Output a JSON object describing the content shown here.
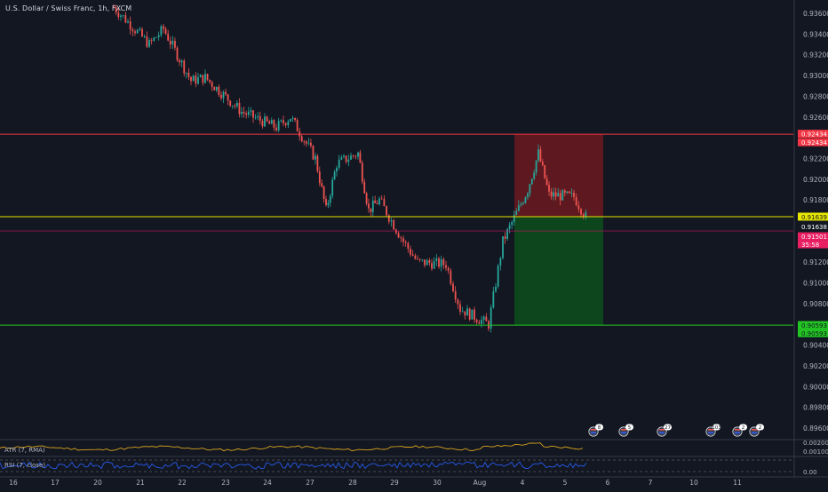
{
  "header": {
    "title": "U.S. Dollar / Swiss Franc, 1h, FXCM"
  },
  "price_axis": {
    "ticks": [
      "0.93600",
      "0.93400",
      "0.93200",
      "0.93000",
      "0.92800",
      "0.92600",
      "0.92200",
      "0.92000",
      "0.91800",
      "0.91200",
      "0.91000",
      "0.90800",
      "0.90400",
      "0.90200",
      "0.90000",
      "0.89800",
      "0.89600"
    ]
  },
  "price_tags": {
    "red_upper": "0.92434",
    "red_lower": "0.92434",
    "yellow": "0.91639",
    "current": "0.91638",
    "pink": "0.91501",
    "countdown": "35:58",
    "green_upper": "0.90593",
    "green_lower": "0.90593"
  },
  "time_axis": {
    "labels": [
      "16",
      "17",
      "20",
      "21",
      "22",
      "23",
      "24",
      "27",
      "28",
      "29",
      "30",
      "Aug",
      "4",
      "5",
      "6",
      "7",
      "10",
      "11"
    ]
  },
  "event_badges": [
    "8",
    "5",
    "27",
    "103",
    "2",
    "2"
  ],
  "indicators": {
    "atr": {
      "label": "ATR (7, RMA)",
      "ticks": [
        "0.00200",
        "0.00100"
      ]
    },
    "rsi": {
      "label": "RSI (7, close)",
      "ticks": [
        "0.00"
      ]
    }
  },
  "colors": {
    "background": "#131722",
    "bull": "#26a69a",
    "bear": "#ef5350",
    "red_line": "#f23645",
    "yellow_line": "#e6e600",
    "green_line": "#22c522",
    "stop_zone": "#6b1a1f",
    "target_zone": "#0d4a1d"
  },
  "chart_data": {
    "type": "candlestick",
    "symbol": "U.S. Dollar / Swiss Franc",
    "interval": "1h",
    "source": "FXCM",
    "close_path": [
      {
        "date": "Jul 20",
        "price": 0.9366
      },
      {
        "date": "Jul 21",
        "price": 0.933
      },
      {
        "date": "Jul 21",
        "price": 0.9345
      },
      {
        "date": "Jul 22",
        "price": 0.9295
      },
      {
        "date": "Jul 22",
        "price": 0.9298
      },
      {
        "date": "Jul 23",
        "price": 0.9265
      },
      {
        "date": "Jul 24",
        "price": 0.925
      },
      {
        "date": "Jul 24",
        "price": 0.926
      },
      {
        "date": "Jul 27",
        "price": 0.922
      },
      {
        "date": "Jul 27",
        "price": 0.917
      },
      {
        "date": "Jul 27",
        "price": 0.9215
      },
      {
        "date": "Jul 28",
        "price": 0.9225
      },
      {
        "date": "Jul 28",
        "price": 0.917
      },
      {
        "date": "Jul 28",
        "price": 0.918
      },
      {
        "date": "Jul 29",
        "price": 0.914
      },
      {
        "date": "Jul 29",
        "price": 0.912
      },
      {
        "date": "Jul 30",
        "price": 0.9118
      },
      {
        "date": "Jul 30",
        "price": 0.9075
      },
      {
        "date": "Jul 31",
        "price": 0.906
      },
      {
        "date": "Jul 31",
        "price": 0.914
      },
      {
        "date": "Aug 3",
        "price": 0.919
      },
      {
        "date": "Aug 3",
        "price": 0.9225
      },
      {
        "date": "Aug 3",
        "price": 0.9185
      },
      {
        "date": "Aug 4",
        "price": 0.9183
      },
      {
        "date": "Aug 4",
        "price": 0.916
      }
    ],
    "lines": {
      "stop_loss": 0.92434,
      "entry": 0.91639,
      "current": 0.91638,
      "level": 0.91501,
      "take_profit": 0.90593
    },
    "position": {
      "side": "short",
      "entry": 0.91639,
      "stop": 0.92434,
      "target": 0.90593
    },
    "ylim": [
      0.8946,
      0.9372
    ],
    "grid": false
  }
}
